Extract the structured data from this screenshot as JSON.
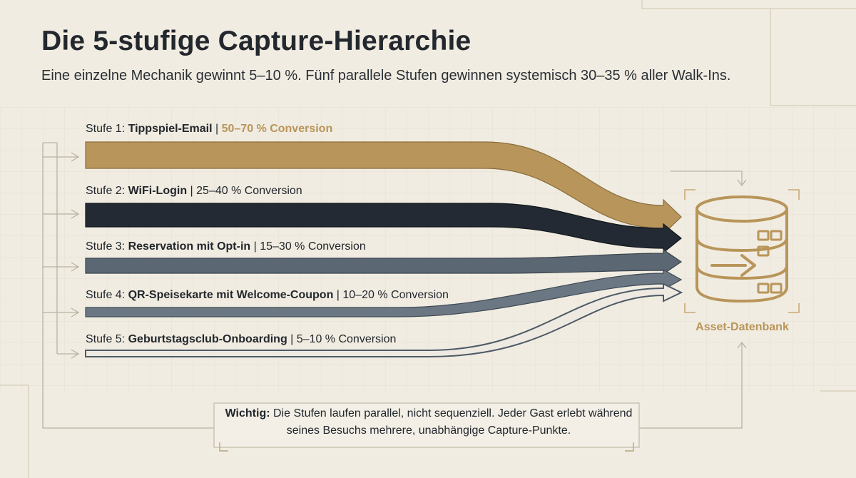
{
  "title": "Die 5-stufige Capture-Hierarchie",
  "subtitle": "Eine einzelne Mechanik gewinnt 5–10 %. Fünf parallele Stufen gewinnen systemisch 30–35 % aller Walk-Ins.",
  "colors": {
    "background": "#f1ece1",
    "gold": "#b8955a",
    "dark": "#232a33",
    "slate": "#5b6773",
    "slate_mid": "#6b7782",
    "slate_light": "#7b8791",
    "grid": "#e3dccd",
    "line": "#c9c1b0"
  },
  "stages": [
    {
      "prefix": "Stufe 1: ",
      "name": "Tippspiel-Email",
      "separator": " | ",
      "rate": "50–70 % Conversion",
      "rate_highlight": true,
      "color": "gold"
    },
    {
      "prefix": "Stufe 2: ",
      "name": "WiFi-Login",
      "separator": " | ",
      "rate": "25–40 % Conversion",
      "rate_highlight": false,
      "color": "dark"
    },
    {
      "prefix": "Stufe 3: ",
      "name": "Reservation mit Opt-in",
      "separator": " | ",
      "rate": "15–30 % Conversion",
      "rate_highlight": false,
      "color": "slate"
    },
    {
      "prefix": "Stufe 4: ",
      "name": "QR-Speisekarte mit Welcome-Coupon",
      "separator": " | ",
      "rate": "10–20 % Conversion",
      "rate_highlight": false,
      "color": "slate_mid"
    },
    {
      "prefix": "Stufe 5: ",
      "name": "Geburtstagsclub-Onboarding",
      "separator": " | ",
      "rate": "5–10 % Conversion",
      "rate_highlight": false,
      "color": "slate_light"
    }
  ],
  "target": {
    "label": "Asset-Datenbank",
    "icon": "database-icon"
  },
  "note": {
    "bold": "Wichtig:",
    "text": " Die Stufen laufen parallel, nicht sequenziell. Jeder Gast erlebt während seines Besuchs mehrere, unabhängige Capture-Punkte."
  }
}
